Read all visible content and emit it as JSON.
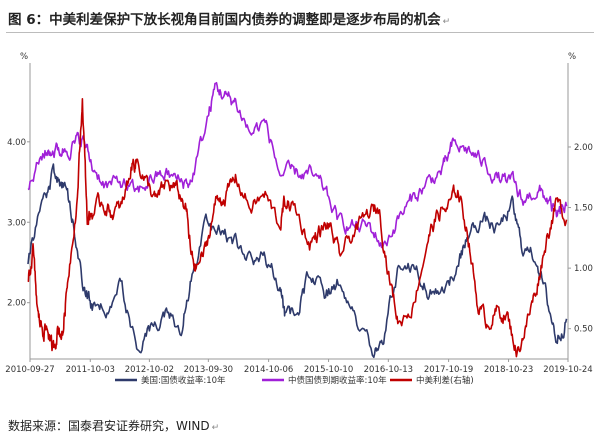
{
  "figure": {
    "title": "图 6：中美利差保护下放长视角目前国内债券的调整即是逐步布局的机会",
    "return_mark": "↵",
    "source": "数据来源：国泰君安证券研究，WIND",
    "source_mark": "↵"
  },
  "chart_data": {
    "type": "line",
    "left_axis": {
      "unit": "%",
      "range": [
        1.3,
        4.93
      ],
      "ticks": [
        2.0,
        3.0,
        4.0
      ],
      "tick_labels": [
        "2.00",
        "3.00",
        "4.00"
      ]
    },
    "right_axis": {
      "unit": "%",
      "range": [
        0.25,
        2.66
      ],
      "ticks": [
        0.5,
        1.0,
        1.5,
        2.0
      ],
      "tick_labels": [
        "0.50",
        "1.00",
        "1.50",
        "2.00"
      ]
    },
    "x_range": [
      "2010-09-27",
      "2019-10-24"
    ],
    "x_tick_labels": [
      "2010-09-27",
      "2011-10-03",
      "2012-10-02",
      "2013-09-30",
      "2014-10-06",
      "2015-10-10",
      "2016-10-13",
      "2017-10-19",
      "2018-10-23",
      "2019-10-24"
    ],
    "grid": false,
    "legend_position": "bottom",
    "colors": {
      "us": "#2e3a6b",
      "cn": "#a020d8",
      "spread": "#c00000"
    },
    "series": [
      {
        "name": "美国:国债收益率:10年",
        "axis": "left",
        "color": "#2e3a6b",
        "x": [
          "2010-09",
          "2010-12",
          "2011-02",
          "2011-04",
          "2011-06",
          "2011-08",
          "2011-10",
          "2012-01",
          "2012-04",
          "2012-07",
          "2012-10",
          "2013-01",
          "2013-04",
          "2013-06",
          "2013-09",
          "2013-12",
          "2014-03",
          "2014-06",
          "2014-09",
          "2014-12",
          "2015-01",
          "2015-04",
          "2015-06",
          "2015-09",
          "2015-12",
          "2016-03",
          "2016-07",
          "2016-09",
          "2016-12",
          "2017-03",
          "2017-06",
          "2017-09",
          "2017-12",
          "2018-02",
          "2018-05",
          "2018-08",
          "2018-11",
          "2019-01",
          "2019-04",
          "2019-06",
          "2019-08",
          "2019-10"
        ],
        "y": [
          2.55,
          3.3,
          3.6,
          3.45,
          3.1,
          2.3,
          1.95,
          1.95,
          2.2,
          1.45,
          1.7,
          1.9,
          1.7,
          2.3,
          2.95,
          2.9,
          2.75,
          2.6,
          2.55,
          2.2,
          1.8,
          1.95,
          2.4,
          2.1,
          2.25,
          1.8,
          1.38,
          1.6,
          2.45,
          2.5,
          2.15,
          2.2,
          2.4,
          2.85,
          3.05,
          2.9,
          3.2,
          2.7,
          2.55,
          2.05,
          1.55,
          1.8
        ]
      },
      {
        "name": "中债国债到期收益率:10年",
        "axis": "left",
        "color": "#a020d8",
        "x": [
          "2010-09",
          "2010-12",
          "2011-02",
          "2011-04",
          "2011-06",
          "2011-08",
          "2011-10",
          "2012-01",
          "2012-04",
          "2012-07",
          "2012-10",
          "2013-01",
          "2013-04",
          "2013-06",
          "2013-09",
          "2013-11",
          "2014-01",
          "2014-03",
          "2014-06",
          "2014-09",
          "2014-12",
          "2015-03",
          "2015-06",
          "2015-09",
          "2015-12",
          "2016-03",
          "2016-06",
          "2016-09",
          "2016-12",
          "2017-03",
          "2017-06",
          "2017-09",
          "2017-11",
          "2018-02",
          "2018-05",
          "2018-08",
          "2018-11",
          "2019-01",
          "2019-04",
          "2019-06",
          "2019-08",
          "2019-10"
        ],
        "y": [
          3.4,
          3.85,
          3.9,
          3.9,
          3.95,
          4.05,
          3.7,
          3.45,
          3.5,
          3.35,
          3.55,
          3.6,
          3.5,
          3.5,
          4.2,
          4.7,
          4.55,
          4.5,
          4.1,
          4.25,
          3.6,
          3.6,
          3.6,
          3.4,
          3.0,
          2.95,
          2.95,
          2.7,
          3.05,
          3.3,
          3.5,
          3.65,
          3.95,
          3.9,
          3.75,
          3.55,
          3.5,
          3.25,
          3.4,
          3.3,
          3.05,
          3.2
        ]
      },
      {
        "name": "中美利差(右轴)",
        "axis": "right",
        "color": "#c00000",
        "x": [
          "2010-09",
          "2010-10",
          "2010-11",
          "2010-12",
          "2011-01",
          "2011-02",
          "2011-03",
          "2011-04",
          "2011-05",
          "2011-07",
          "2011-08",
          "2011-09",
          "2011-10",
          "2011-12",
          "2012-02",
          "2012-04",
          "2012-06",
          "2012-07",
          "2012-09",
          "2012-11",
          "2013-01",
          "2013-03",
          "2013-05",
          "2013-06",
          "2013-07",
          "2013-09",
          "2013-11",
          "2014-01",
          "2014-03",
          "2014-06",
          "2014-09",
          "2014-12",
          "2015-01",
          "2015-03",
          "2015-06",
          "2015-08",
          "2015-10",
          "2015-12",
          "2016-03",
          "2016-06",
          "2016-08",
          "2016-10",
          "2016-12",
          "2017-03",
          "2017-06",
          "2017-08",
          "2017-10",
          "2017-12",
          "2018-02",
          "2018-04",
          "2018-06",
          "2018-08",
          "2018-10",
          "2018-12",
          "2019-02",
          "2019-04",
          "2019-06",
          "2019-08",
          "2019-10"
        ],
        "y": [
          0.85,
          1.15,
          0.6,
          0.5,
          0.5,
          0.3,
          0.5,
          0.45,
          0.9,
          1.6,
          2.4,
          1.4,
          1.45,
          1.55,
          1.45,
          1.5,
          1.85,
          1.9,
          1.7,
          1.55,
          1.7,
          1.65,
          1.5,
          1.1,
          1.0,
          1.15,
          1.55,
          1.6,
          1.75,
          1.5,
          1.6,
          1.35,
          1.55,
          1.5,
          1.2,
          1.3,
          1.35,
          1.1,
          1.3,
          1.45,
          1.5,
          0.95,
          0.55,
          0.7,
          1.25,
          1.45,
          1.5,
          1.65,
          1.3,
          0.7,
          0.55,
          0.65,
          0.6,
          0.3,
          0.55,
          0.85,
          1.25,
          1.55,
          1.4
        ]
      }
    ]
  }
}
